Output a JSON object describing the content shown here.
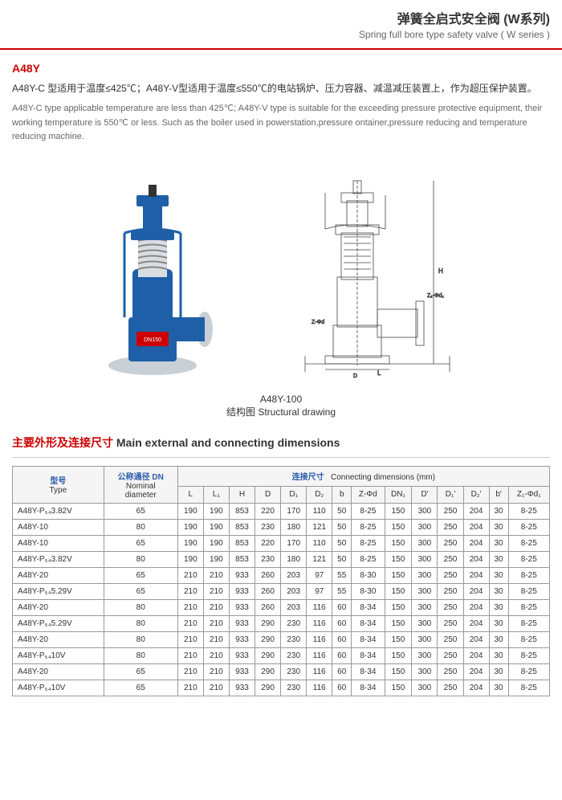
{
  "header": {
    "title_cn": "弹簧全启式安全阀 (W系列)",
    "title_en": "Spring full bore type safety valve ( W series )"
  },
  "model": {
    "name": "A48Y",
    "desc_cn": "A48Y-C 型适用于温度≤425℃；A48Y-V型适用于温度≤550℃的电站锅炉、压力容器、减温减压装置上，作为超压保护装置。",
    "desc_en": "A48Y-C type applicable temperature are less than 425℃; A48Y-V type is suitable for the exceeding pressure protective equipment, their working temperature is 550℃ or less. Such as the boiler used in powerstation,pressure ontainer,pressure reducing and temperature reducing machine."
  },
  "caption": {
    "model": "A48Y-100",
    "cn": "结构图",
    "en": "Structural drawing"
  },
  "table_section": {
    "title_cn": "主要外形及连接尺寸",
    "title_en": "Main external and connecting dimensions"
  },
  "table": {
    "head": {
      "type_cn": "型号",
      "type_en": "Type",
      "dn_cn": "公称通径 DN",
      "dn_en1": "Nominal",
      "dn_en2": "diameter",
      "conn_cn": "连接尺寸",
      "conn_en": "Connecting dimensions (mm)",
      "cols": [
        "L",
        "L₁",
        "H",
        "D",
        "D₁",
        "D₂",
        "b",
        "Z-Φd",
        "DN₁",
        "D'",
        "D₁'",
        "D₂'",
        "b'",
        "Z₁-Φd₁"
      ]
    },
    "rows": [
      {
        "type": "A48Y-P₅₄3.82V",
        "dn": "65",
        "v": [
          "190",
          "190",
          "853",
          "220",
          "170",
          "110",
          "50",
          "8-25",
          "150",
          "300",
          "250",
          "204",
          "30",
          "8-25"
        ]
      },
      {
        "type": "A48Y-10",
        "dn": "80",
        "v": [
          "190",
          "190",
          "853",
          "230",
          "180",
          "121",
          "50",
          "8-25",
          "150",
          "300",
          "250",
          "204",
          "30",
          "8-25"
        ]
      },
      {
        "type": "A48Y-10",
        "dn": "65",
        "v": [
          "190",
          "190",
          "853",
          "220",
          "170",
          "110",
          "50",
          "8-25",
          "150",
          "300",
          "250",
          "204",
          "30",
          "8-25"
        ]
      },
      {
        "type": "A48Y-P₅₄3.82V",
        "dn": "80",
        "v": [
          "190",
          "190",
          "853",
          "230",
          "180",
          "121",
          "50",
          "8-25",
          "150",
          "300",
          "250",
          "204",
          "30",
          "8-25"
        ]
      },
      {
        "type": "A48Y-20",
        "dn": "65",
        "v": [
          "210",
          "210",
          "933",
          "260",
          "203",
          "97",
          "55",
          "8-30",
          "150",
          "300",
          "250",
          "204",
          "30",
          "8-25"
        ]
      },
      {
        "type": "A48Y-P₅₄5.29V",
        "dn": "65",
        "v": [
          "210",
          "210",
          "933",
          "260",
          "203",
          "97",
          "55",
          "8-30",
          "150",
          "300",
          "250",
          "204",
          "30",
          "8-25"
        ]
      },
      {
        "type": "A48Y-20",
        "dn": "80",
        "v": [
          "210",
          "210",
          "933",
          "260",
          "203",
          "116",
          "60",
          "8-34",
          "150",
          "300",
          "250",
          "204",
          "30",
          "8-25"
        ]
      },
      {
        "type": "A48Y-P₅₄5.29V",
        "dn": "80",
        "v": [
          "210",
          "210",
          "933",
          "290",
          "230",
          "116",
          "60",
          "8-34",
          "150",
          "300",
          "250",
          "204",
          "30",
          "8-25"
        ]
      },
      {
        "type": "A48Y-20",
        "dn": "80",
        "v": [
          "210",
          "210",
          "933",
          "290",
          "230",
          "116",
          "60",
          "8-34",
          "150",
          "300",
          "250",
          "204",
          "30",
          "8-25"
        ]
      },
      {
        "type": "A48Y-P₅₄10V",
        "dn": "80",
        "v": [
          "210",
          "210",
          "933",
          "290",
          "230",
          "116",
          "60",
          "8-34",
          "150",
          "300",
          "250",
          "204",
          "30",
          "8-25"
        ]
      },
      {
        "type": "A48Y-20",
        "dn": "65",
        "v": [
          "210",
          "210",
          "933",
          "290",
          "230",
          "116",
          "60",
          "8-34",
          "150",
          "300",
          "250",
          "204",
          "30",
          "8-25"
        ]
      },
      {
        "type": "A48Y-P₅₄10V",
        "dn": "65",
        "v": [
          "210",
          "210",
          "933",
          "290",
          "230",
          "116",
          "60",
          "8-34",
          "150",
          "300",
          "250",
          "204",
          "30",
          "8-25"
        ]
      }
    ]
  },
  "colors": {
    "accent": "#c00",
    "blue": "#2a5caa",
    "valve_blue": "#1e5fa8",
    "valve_silver": "#b8c4cc",
    "drawing_line": "#444"
  }
}
